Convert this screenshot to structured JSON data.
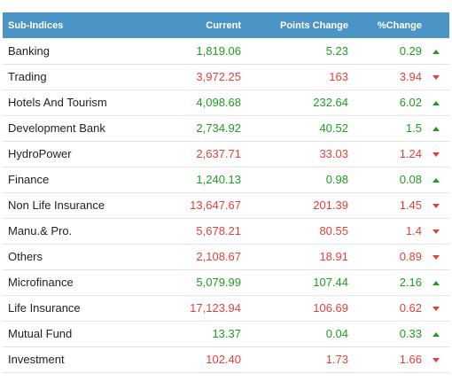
{
  "header": {
    "col_name": "Sub-Indices",
    "col_current": "Current",
    "col_points": "Points Change",
    "col_pct": "%Change"
  },
  "colors": {
    "header_bg": "#4a95c5",
    "up": "#1e9e1e",
    "down": "#e5403a"
  },
  "rows": [
    {
      "name": "Banking",
      "current": "1,819.06",
      "points": "5.23",
      "pct": "0.29",
      "dir": "up"
    },
    {
      "name": "Trading",
      "current": "3,972.25",
      "points": "163",
      "pct": "3.94",
      "dir": "down"
    },
    {
      "name": "Hotels And Tourism",
      "current": "4,098.68",
      "points": "232.64",
      "pct": "6.02",
      "dir": "up"
    },
    {
      "name": "Development Bank",
      "current": "2,734.92",
      "points": "40.52",
      "pct": "1.5",
      "dir": "up"
    },
    {
      "name": "HydroPower",
      "current": "2,637.71",
      "points": "33.03",
      "pct": "1.24",
      "dir": "down"
    },
    {
      "name": "Finance",
      "current": "1,240.13",
      "points": "0.98",
      "pct": "0.08",
      "dir": "up"
    },
    {
      "name": "Non Life Insurance",
      "current": "13,647.67",
      "points": "201.39",
      "pct": "1.45",
      "dir": "down"
    },
    {
      "name": "Manu.& Pro.",
      "current": "5,678.21",
      "points": "80.55",
      "pct": "1.4",
      "dir": "down"
    },
    {
      "name": "Others",
      "current": "2,108.67",
      "points": "18.91",
      "pct": "0.89",
      "dir": "down"
    },
    {
      "name": "Microfinance",
      "current": "5,079.99",
      "points": "107.44",
      "pct": "2.16",
      "dir": "up"
    },
    {
      "name": "Life Insurance",
      "current": "17,123.94",
      "points": "106.69",
      "pct": "0.62",
      "dir": "down"
    },
    {
      "name": "Mutual Fund",
      "current": "13.37",
      "points": "0.04",
      "pct": "0.33",
      "dir": "up"
    },
    {
      "name": "Investment",
      "current": "102.40",
      "points": "1.73",
      "pct": "1.66",
      "dir": "down"
    }
  ]
}
